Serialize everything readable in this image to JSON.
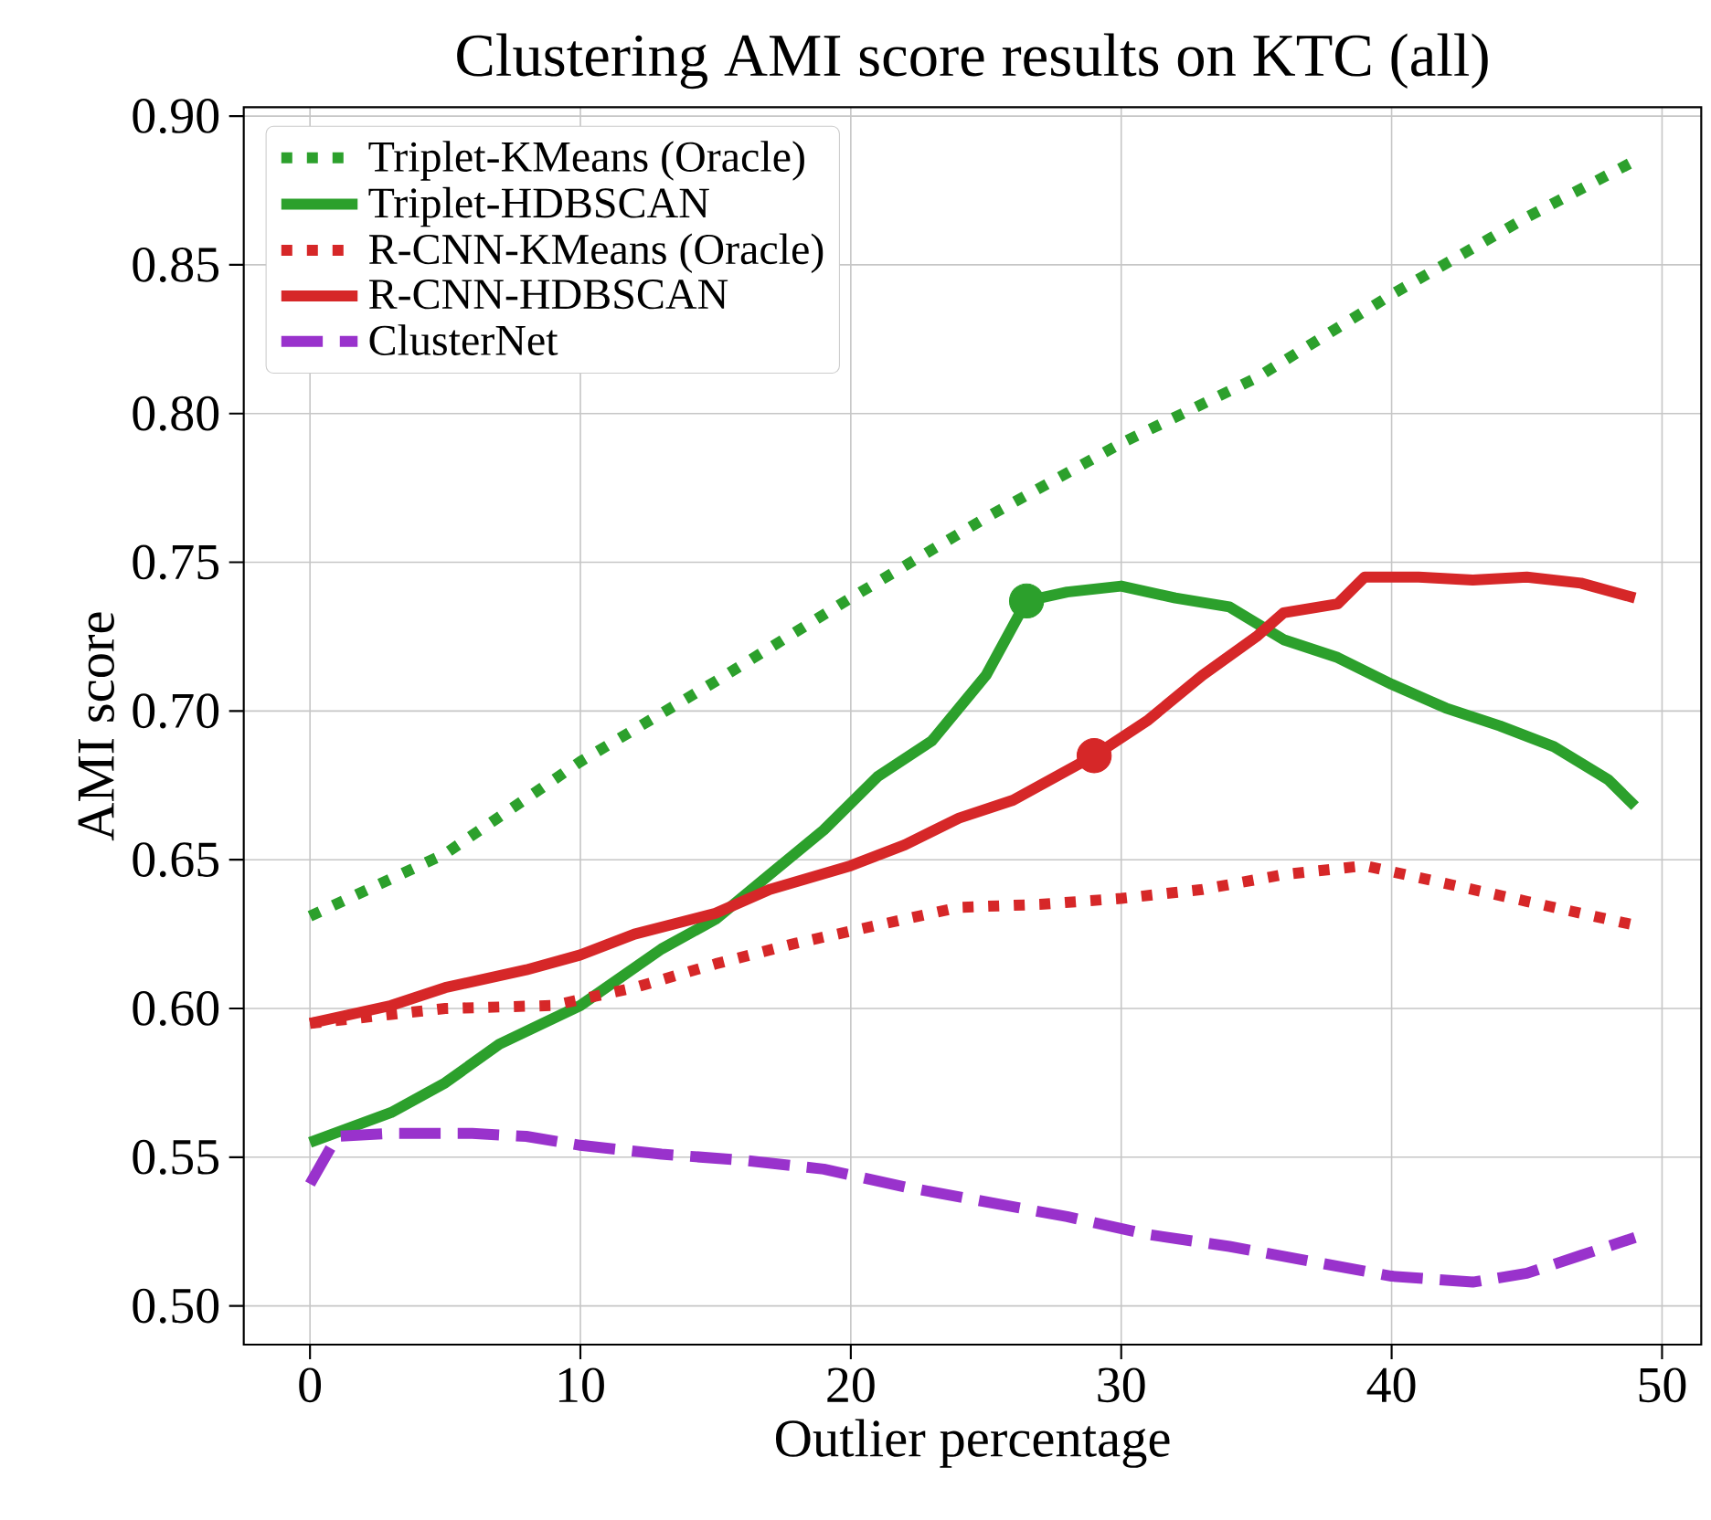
{
  "chart_data": {
    "type": "line",
    "title": "Clustering AMI score results on KTC (all)",
    "xlabel": "Outlier percentage",
    "ylabel": "AMI score",
    "xlim": [
      -2.45,
      51.45
    ],
    "xticks": [
      0,
      10,
      20,
      30,
      40,
      50
    ],
    "ylim": [
      0.487,
      0.903
    ],
    "yticks": [
      {
        "value": 0.5,
        "label": "0.50"
      },
      {
        "value": 0.55,
        "label": "0.55"
      },
      {
        "value": 0.6,
        "label": "0.60"
      },
      {
        "value": 0.65,
        "label": "0.65"
      },
      {
        "value": 0.7,
        "label": "0.70"
      },
      {
        "value": 0.75,
        "label": "0.75"
      },
      {
        "value": 0.8,
        "label": "0.80"
      },
      {
        "value": 0.85,
        "label": "0.85"
      },
      {
        "value": 0.9,
        "label": "0.90"
      }
    ],
    "grid": true,
    "legend": "top left",
    "series": [
      {
        "name": "Triplet-KMeans (Oracle)",
        "color": "#2ca02c",
        "line_style": "dotted",
        "x": [
          0,
          5,
          10,
          15,
          20,
          25,
          30,
          35,
          40,
          45,
          49
        ],
        "values": [
          0.631,
          0.652,
          0.683,
          0.71,
          0.738,
          0.765,
          0.79,
          0.812,
          0.84,
          0.866,
          0.885
        ]
      },
      {
        "name": "Triplet-HDBSCAN",
        "color": "#2ca02c",
        "line_style": "solid",
        "x": [
          0,
          3,
          5,
          7,
          10,
          13,
          15,
          17,
          19,
          21,
          23,
          25,
          26.5,
          28,
          30,
          32,
          34,
          36,
          38,
          40,
          42,
          44,
          46,
          48,
          49
        ],
        "values": [
          0.555,
          0.565,
          0.575,
          0.588,
          0.601,
          0.62,
          0.63,
          0.645,
          0.66,
          0.678,
          0.69,
          0.712,
          0.737,
          0.74,
          0.742,
          0.738,
          0.735,
          0.724,
          0.718,
          0.709,
          0.701,
          0.695,
          0.688,
          0.677,
          0.668
        ]
      },
      {
        "name": "R-CNN-KMeans (Oracle)",
        "color": "#d62728",
        "line_style": "dotted",
        "x": [
          0,
          3,
          5,
          9,
          12,
          15,
          18,
          21,
          24,
          27,
          30,
          33,
          36,
          39,
          42,
          45,
          49
        ],
        "values": [
          0.595,
          0.598,
          0.6,
          0.601,
          0.607,
          0.615,
          0.622,
          0.628,
          0.634,
          0.635,
          0.637,
          0.64,
          0.645,
          0.648,
          0.642,
          0.636,
          0.628
        ]
      },
      {
        "name": "R-CNN-HDBSCAN",
        "color": "#d62728",
        "line_style": "solid",
        "x": [
          0,
          3,
          5,
          8,
          10,
          12,
          15,
          17,
          20,
          22,
          24,
          26,
          29,
          31,
          33,
          35,
          36,
          38,
          39,
          41,
          43,
          45,
          47,
          49
        ],
        "values": [
          0.595,
          0.601,
          0.607,
          0.613,
          0.618,
          0.625,
          0.632,
          0.64,
          0.648,
          0.655,
          0.664,
          0.67,
          0.685,
          0.697,
          0.712,
          0.725,
          0.733,
          0.736,
          0.745,
          0.745,
          0.744,
          0.745,
          0.743,
          0.738
        ]
      },
      {
        "name": "ClusterNet",
        "color": "#9932cc",
        "line_style": "dashed",
        "x": [
          0,
          1,
          3,
          6,
          8,
          10,
          13,
          16,
          19,
          22,
          25,
          28,
          31,
          34,
          37,
          40,
          43,
          45,
          47,
          49
        ],
        "values": [
          0.541,
          0.557,
          0.558,
          0.558,
          0.557,
          0.554,
          0.551,
          0.549,
          0.546,
          0.54,
          0.535,
          0.53,
          0.524,
          0.52,
          0.515,
          0.51,
          0.508,
          0.511,
          0.517,
          0.523
        ]
      },
      {
        "type": "scatter",
        "marker": "circle",
        "color": "#2ca02c",
        "x": [
          26.5
        ],
        "values": [
          0.737
        ]
      },
      {
        "type": "scatter",
        "marker": "circle",
        "color": "#d62728",
        "x": [
          29
        ],
        "values": [
          0.685
        ]
      }
    ]
  }
}
